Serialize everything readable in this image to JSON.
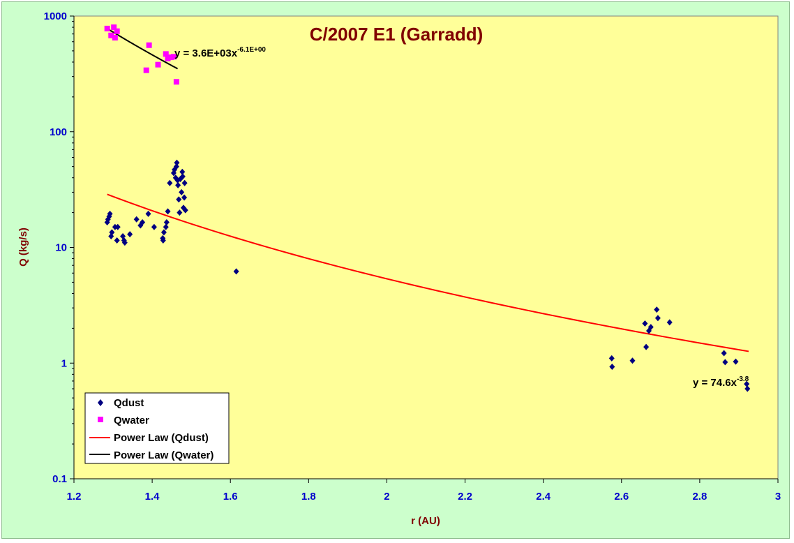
{
  "chart_data": {
    "type": "scatter",
    "title": "C/2007 E1 (Garradd)",
    "xlabel": "r (AU)",
    "ylabel": "Q (kg/s)",
    "xlim": [
      1.2,
      3.0
    ],
    "ylim": [
      0.1,
      1000
    ],
    "yscale": "log",
    "grid": false,
    "legend_position": "bottom-left",
    "x_ticks": [
      "1.2",
      "1.4",
      "1.6",
      "1.8",
      "2",
      "2.2",
      "2.4",
      "2.6",
      "2.8",
      "3"
    ],
    "y_ticks": [
      "0.1",
      "1",
      "10",
      "100",
      "1000"
    ],
    "colors": {
      "plot_background": "#ffff99",
      "outer_background": "#ccffcc",
      "qdust": "#000080",
      "qwater": "#ff00ff",
      "fit_qdust": "#ff0000",
      "fit_qwater": "#000000",
      "title": "#800000",
      "tick_labels": "#0000cc"
    },
    "series": [
      {
        "name": "Qdust",
        "marker": "diamond",
        "points": [
          [
            1.285,
            16.5
          ],
          [
            1.287,
            17.5
          ],
          [
            1.29,
            18.5
          ],
          [
            1.292,
            19.5
          ],
          [
            1.295,
            12.5
          ],
          [
            1.297,
            13.5
          ],
          [
            1.305,
            15.0
          ],
          [
            1.31,
            11.5
          ],
          [
            1.312,
            15.0
          ],
          [
            1.325,
            12.5
          ],
          [
            1.328,
            11.5
          ],
          [
            1.33,
            11.0
          ],
          [
            1.343,
            13.0
          ],
          [
            1.36,
            17.5
          ],
          [
            1.37,
            15.5
          ],
          [
            1.375,
            16.5
          ],
          [
            1.39,
            19.5
          ],
          [
            1.405,
            15.0
          ],
          [
            1.427,
            12.0
          ],
          [
            1.428,
            11.5
          ],
          [
            1.43,
            13.5
          ],
          [
            1.435,
            15.0
          ],
          [
            1.437,
            16.5
          ],
          [
            1.44,
            20.5
          ],
          [
            1.445,
            36.0
          ],
          [
            1.455,
            44.0
          ],
          [
            1.457,
            47.0
          ],
          [
            1.46,
            40.0
          ],
          [
            1.462,
            50.0
          ],
          [
            1.463,
            54.0
          ],
          [
            1.465,
            38.0
          ],
          [
            1.466,
            34.5
          ],
          [
            1.468,
            26.0
          ],
          [
            1.47,
            20.0
          ],
          [
            1.472,
            39.0
          ],
          [
            1.475,
            30.0
          ],
          [
            1.477,
            45.0
          ],
          [
            1.478,
            41.0
          ],
          [
            1.48,
            22.0
          ],
          [
            1.482,
            27.0
          ],
          [
            1.483,
            36.0
          ],
          [
            1.485,
            21.0
          ],
          [
            1.615,
            6.2
          ],
          [
            2.575,
            1.1
          ],
          [
            2.576,
            0.93
          ],
          [
            2.628,
            1.05
          ],
          [
            2.66,
            2.2
          ],
          [
            2.663,
            1.38
          ],
          [
            2.67,
            1.9
          ],
          [
            2.675,
            2.05
          ],
          [
            2.69,
            2.9
          ],
          [
            2.693,
            2.45
          ],
          [
            2.723,
            2.25
          ],
          [
            2.862,
            1.22
          ],
          [
            2.865,
            1.02
          ],
          [
            2.892,
            1.03
          ],
          [
            2.92,
            0.66
          ],
          [
            2.922,
            0.6
          ]
        ]
      },
      {
        "name": "Qwater",
        "marker": "square",
        "points": [
          [
            1.285,
            780
          ],
          [
            1.295,
            680
          ],
          [
            1.302,
            800
          ],
          [
            1.305,
            650
          ],
          [
            1.31,
            740
          ],
          [
            1.385,
            340
          ],
          [
            1.392,
            560
          ],
          [
            1.415,
            380
          ],
          [
            1.435,
            470
          ],
          [
            1.44,
            430
          ],
          [
            1.448,
            440
          ],
          [
            1.455,
            445
          ],
          [
            1.462,
            270
          ]
        ]
      },
      {
        "name": "Power Law (Qdust)",
        "type": "line",
        "equation": "y = 74.6x",
        "exponent_label": "-3.8",
        "coefficient": 74.6,
        "exponent": -3.8,
        "x_range": [
          1.285,
          2.925
        ]
      },
      {
        "name": "Power Law (Qwater)",
        "type": "line",
        "equation": "y = 3.6E+03x",
        "exponent_label": "-6.1E+00",
        "coefficient": 3600,
        "exponent": -6.1,
        "x_range": [
          1.285,
          1.465
        ]
      }
    ]
  }
}
